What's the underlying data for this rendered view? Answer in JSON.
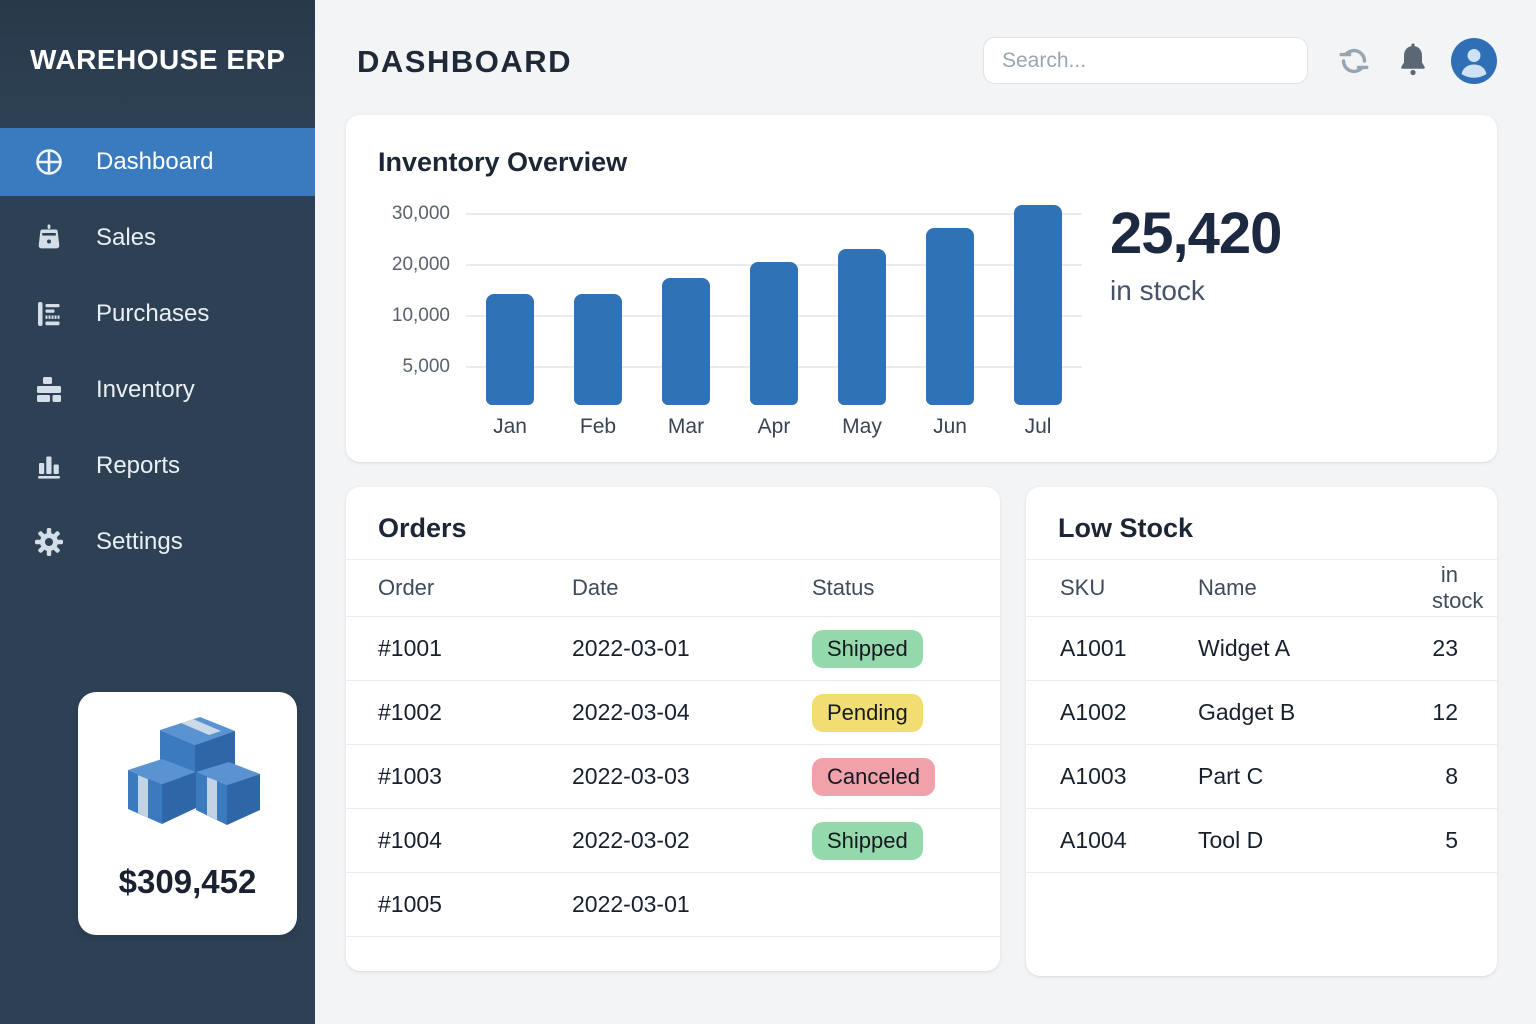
{
  "brand": "WAREHOUSE ERP",
  "sidebar": {
    "items": [
      {
        "label": "Dashboard",
        "icon": "dashboard-icon",
        "active": true
      },
      {
        "label": "Sales",
        "icon": "sales-icon",
        "active": false
      },
      {
        "label": "Purchases",
        "icon": "purchases-icon",
        "active": false
      },
      {
        "label": "Inventory",
        "icon": "inventory-icon",
        "active": false
      },
      {
        "label": "Reports",
        "icon": "reports-icon",
        "active": false
      },
      {
        "label": "Settings",
        "icon": "settings-icon",
        "active": false
      }
    ],
    "summary_card": {
      "value": "$309,452",
      "icon": "boxes-illustration"
    }
  },
  "topbar": {
    "title": "DASHBOARD",
    "search_placeholder": "Search...",
    "icons": [
      "refresh-icon",
      "bell-icon",
      "user-avatar"
    ]
  },
  "inventory_overview": {
    "title": "Inventory Overview",
    "in_stock_value": "25,420",
    "in_stock_label": "in stock"
  },
  "chart_data": {
    "type": "bar",
    "title": "Inventory Overview",
    "categories": [
      "Jan",
      "Feb",
      "Mar",
      "Apr",
      "May",
      "Jun",
      "Jul"
    ],
    "values": [
      14500,
      14500,
      17600,
      20800,
      23300,
      27400,
      32000
    ],
    "yticks": [
      {
        "label": "5,000",
        "value": 5000
      },
      {
        "label": "10,000",
        "value": 10000
      },
      {
        "label": "20,000",
        "value": 20000
      },
      {
        "label": "30,000",
        "value": 30000
      }
    ],
    "xlabel": "",
    "ylabel": "",
    "ylim": [
      0,
      32000
    ],
    "grid": "horizontal",
    "legend": "none",
    "bar_color": "#2f72b5"
  },
  "orders": {
    "title": "Orders",
    "columns": [
      "Order",
      "Date",
      "Status"
    ],
    "rows": [
      {
        "order": "#1001",
        "date": "2022-03-01",
        "status": "Shipped",
        "status_color": "green"
      },
      {
        "order": "#1002",
        "date": "2022-03-04",
        "status": "Pending",
        "status_color": "yellow"
      },
      {
        "order": "#1003",
        "date": "2022-03-03",
        "status": "Canceled",
        "status_color": "red"
      },
      {
        "order": "#1004",
        "date": "2022-03-02",
        "status": "Shipped",
        "status_color": "green"
      },
      {
        "order": "#1005",
        "date": "2022-03-01",
        "status": "",
        "status_color": ""
      }
    ]
  },
  "low_stock": {
    "title": "Low Stock",
    "columns": [
      "SKU",
      "Name",
      "in stock"
    ],
    "rows": [
      {
        "sku": "A1001",
        "name": "Widget A",
        "in_stock": "23"
      },
      {
        "sku": "A1002",
        "name": "Gadget B",
        "in_stock": "12"
      },
      {
        "sku": "A1003",
        "name": "Part C",
        "in_stock": "8"
      },
      {
        "sku": "A1004",
        "name": "Tool D",
        "in_stock": "5"
      }
    ]
  },
  "colors": {
    "sidebar_bg": "#2e4154",
    "active_item": "#3a7abf",
    "bar": "#2f72b5",
    "badge_green": "#93d9ab",
    "badge_yellow": "#f1dd71",
    "badge_red": "#f0a1a9",
    "avatar_bg": "#2f6fb5",
    "page_bg": "#f2f4f6"
  }
}
